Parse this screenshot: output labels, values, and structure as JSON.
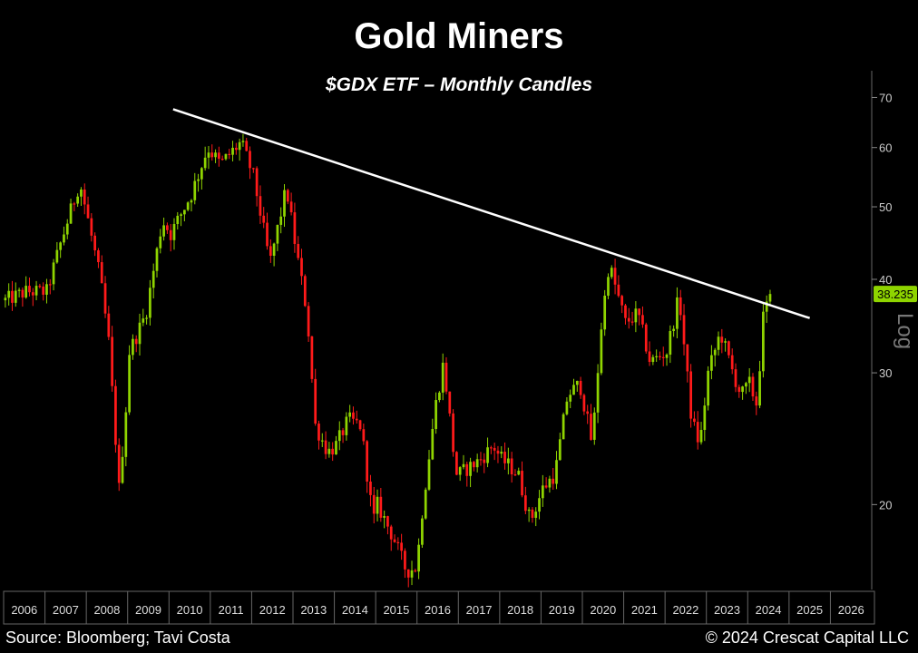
{
  "title": "Gold Miners",
  "subtitle": "$GDX ETF – Monthly Candles",
  "footer": {
    "source": "Source: Bloomberg; Tavi Costa",
    "copyright": "© 2024 Crescat Capital LLC"
  },
  "colors": {
    "background": "#000000",
    "up": "#8fd400",
    "down": "#ff1a1a",
    "trendline": "#ffffff",
    "price_label_bg": "#8fd400"
  },
  "chart_data": {
    "type": "candlestick",
    "scale": "log",
    "ylim": [
      15.4,
      76
    ],
    "xlim": [
      2006.0,
      2027.0
    ],
    "y_ticks": [
      20,
      30,
      40,
      50,
      60,
      70
    ],
    "x_tick_labels": [
      "2006",
      "2007",
      "2008",
      "2009",
      "2010",
      "2011",
      "2012",
      "2013",
      "2014",
      "2015",
      "2016",
      "2017",
      "2018",
      "2019",
      "2020",
      "2021",
      "2022",
      "2023",
      "2024",
      "2025",
      "2026"
    ],
    "axis_side_label": "Log",
    "last_price_label": "38.235",
    "last_price": 38.235,
    "trendline": {
      "start": [
        2010.1,
        67.5
      ],
      "end": [
        2025.5,
        35.5
      ]
    },
    "annual_path": [
      [
        2006.0,
        37.5
      ],
      [
        2006.5,
        38.5
      ],
      [
        2007.0,
        38.5
      ],
      [
        2007.3,
        44.0
      ],
      [
        2007.8,
        54.0
      ],
      [
        2008.0,
        48.0
      ],
      [
        2008.3,
        40.0
      ],
      [
        2008.5,
        33.0
      ],
      [
        2008.75,
        21.0
      ],
      [
        2008.9,
        26.0
      ],
      [
        2009.0,
        32.0
      ],
      [
        2009.4,
        36.0
      ],
      [
        2009.8,
        48.0
      ],
      [
        2010.0,
        46.0
      ],
      [
        2010.5,
        52.0
      ],
      [
        2010.9,
        60.0
      ],
      [
        2011.2,
        57.0
      ],
      [
        2011.7,
        61.0
      ],
      [
        2012.0,
        55.0
      ],
      [
        2012.4,
        42.0
      ],
      [
        2012.8,
        53.0
      ],
      [
        2013.0,
        45.0
      ],
      [
        2013.3,
        36.0
      ],
      [
        2013.5,
        25.5
      ],
      [
        2013.8,
        23.5
      ],
      [
        2014.0,
        24.0
      ],
      [
        2014.3,
        26.0
      ],
      [
        2014.6,
        25.5
      ],
      [
        2014.9,
        19.0
      ],
      [
        2015.0,
        20.0
      ],
      [
        2015.4,
        18.0
      ],
      [
        2015.7,
        16.3
      ],
      [
        2015.95,
        16.5
      ],
      [
        2016.1,
        20.0
      ],
      [
        2016.4,
        27.0
      ],
      [
        2016.6,
        31.0
      ],
      [
        2016.9,
        22.0
      ],
      [
        2017.0,
        22.0
      ],
      [
        2017.5,
        23.0
      ],
      [
        2017.8,
        24.0
      ],
      [
        2018.0,
        23.0
      ],
      [
        2018.4,
        22.0
      ],
      [
        2018.7,
        19.0
      ],
      [
        2019.0,
        21.0
      ],
      [
        2019.3,
        22.0
      ],
      [
        2019.6,
        28.0
      ],
      [
        2019.9,
        29.0
      ],
      [
        2020.2,
        24.0
      ],
      [
        2020.4,
        34.0
      ],
      [
        2020.6,
        42.0
      ],
      [
        2021.0,
        35.0
      ],
      [
        2021.3,
        36.0
      ],
      [
        2021.6,
        31.0
      ],
      [
        2022.0,
        32.0
      ],
      [
        2022.3,
        38.0
      ],
      [
        2022.6,
        26.0
      ],
      [
        2022.8,
        24.0
      ],
      [
        2023.0,
        30.0
      ],
      [
        2023.3,
        34.0
      ],
      [
        2023.6,
        30.0
      ],
      [
        2023.8,
        28.0
      ],
      [
        2024.0,
        29.0
      ],
      [
        2024.2,
        27.0
      ],
      [
        2024.3,
        35.0
      ],
      [
        2024.5,
        38.235
      ]
    ]
  }
}
